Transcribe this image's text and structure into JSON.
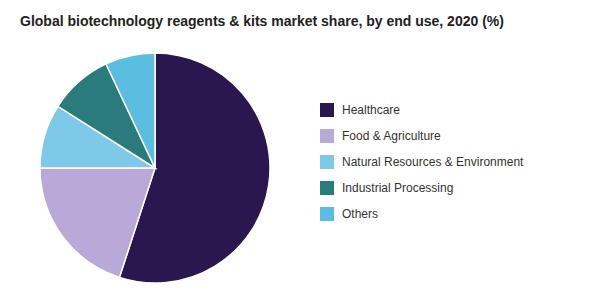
{
  "chart_data": {
    "type": "pie",
    "title": "Global biotechnology reagents & kits market share, by end use, 2020 (%)",
    "categories": [
      "Healthcare",
      "Food & Agriculture",
      "Natural Resources & Environment",
      "Industrial Processing",
      "Others"
    ],
    "values": [
      55.0,
      20.0,
      9.0,
      9.0,
      7.0
    ],
    "colors": [
      "#2A1750",
      "#B8A9D9",
      "#7EC8E8",
      "#2A7B7B",
      "#5BBDE0"
    ],
    "legend": "right"
  }
}
